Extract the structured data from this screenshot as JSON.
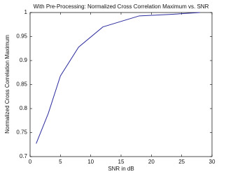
{
  "chart_data": {
    "type": "line",
    "title": "With Pre-Processing: Normalized Cross Correlation Maximum vs. SNR",
    "xlabel": "SNR in dB",
    "ylabel": "Normalized Cross Correlation Maximum",
    "x": [
      1,
      3,
      5,
      8,
      12,
      18,
      23,
      28
    ],
    "series": [
      {
        "name": "Normalized Cross Correlation Maximum",
        "color": "#2b2b9e",
        "values": [
          0.727,
          0.79,
          0.868,
          0.928,
          0.97,
          0.993,
          0.996,
          1.0
        ]
      }
    ],
    "xlim": [
      0,
      30
    ],
    "xticks": [
      0,
      5,
      10,
      15,
      20,
      25,
      30
    ],
    "ylim": [
      0.7,
      1
    ],
    "yticks": [
      0.7,
      0.75,
      0.8,
      0.85,
      0.9,
      0.95,
      1
    ],
    "grid": false
  }
}
